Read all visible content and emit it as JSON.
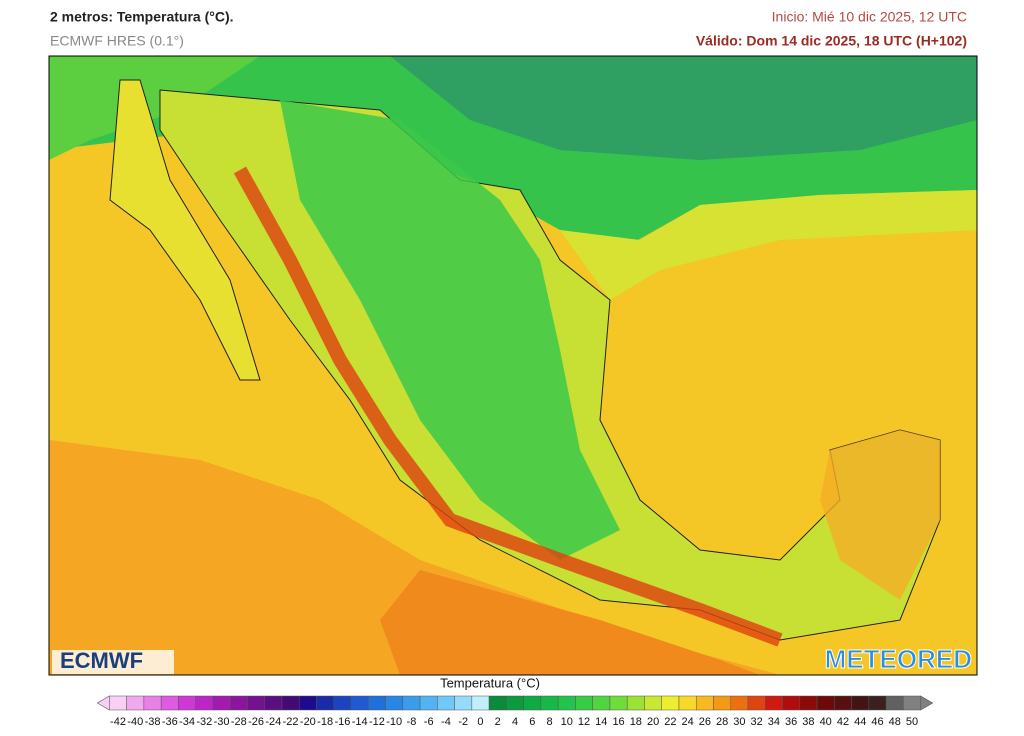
{
  "header": {
    "title": "2 metros: Temperatura (°C).",
    "model": "ECMWF HRES (0.1°)",
    "init": "Inicio: Mié 10 dic 2025, 12 UTC",
    "valid": "Válido: Dom 14 dic 2025, 18 UTC (H+102)"
  },
  "logos": {
    "ecmwf": "ECMWF",
    "meteored": "METEORED"
  },
  "legend": {
    "label": "Temperatura (°C)",
    "ticks": [
      -42,
      -40,
      -38,
      -36,
      -34,
      -32,
      -30,
      -28,
      -26,
      -24,
      -22,
      -20,
      -18,
      -16,
      -14,
      -12,
      -10,
      -8,
      -6,
      -4,
      -2,
      0,
      2,
      4,
      6,
      8,
      10,
      12,
      14,
      16,
      18,
      20,
      22,
      24,
      26,
      28,
      30,
      32,
      34,
      36,
      38,
      40,
      42,
      44,
      46,
      48,
      50
    ],
    "colors": [
      "#f8d0f5",
      "#f0a8ee",
      "#e880e6",
      "#de5ade",
      "#d038d4",
      "#bb26c4",
      "#a21ab0",
      "#8a16a0",
      "#72128f",
      "#5a0e80",
      "#440a74",
      "#1e0a8c",
      "#1a2aa8",
      "#1c44c0",
      "#1e5ad0",
      "#2070dc",
      "#2a86e4",
      "#3a9cec",
      "#52b2f2",
      "#70c8f6",
      "#96dcfa",
      "#c0eefc",
      "#0a8a3a",
      "#0c9a3e",
      "#10aa44",
      "#18b848",
      "#22c44c",
      "#38cc46",
      "#52d440",
      "#70dc3a",
      "#9ce236",
      "#c8e834",
      "#eeee30",
      "#f8d828",
      "#f8b820",
      "#f49818",
      "#ec7010",
      "#e04410",
      "#d01a10",
      "#b00c0c",
      "#8c0a0a",
      "#6c0a0a",
      "#561010",
      "#421414",
      "#3a2020",
      "#606060",
      "#808080"
    ]
  }
}
